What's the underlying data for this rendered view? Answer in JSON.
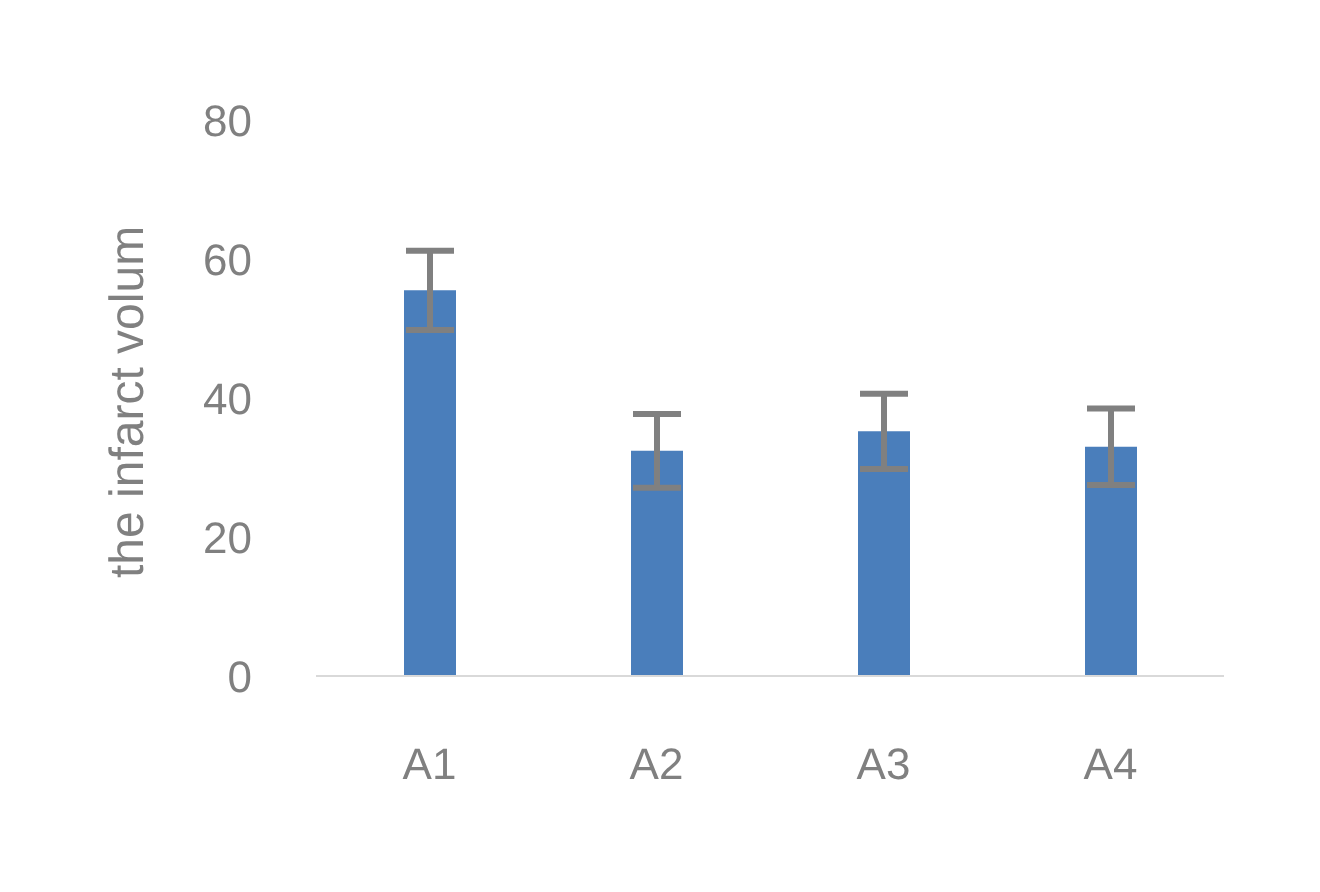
{
  "chart_data": {
    "type": "bar",
    "ylabel": "the infarct volum",
    "categories": [
      "A1",
      "A2",
      "A3",
      "A4"
    ],
    "values": [
      55.5,
      32.4,
      35.2,
      33
    ],
    "errors": [
      5.7,
      5.3,
      5.4,
      5.5
    ],
    "color": "#4a7ebb",
    "ylim": [
      0,
      80
    ],
    "yticks": [
      0,
      20,
      40,
      60,
      80
    ],
    "grid": false
  }
}
